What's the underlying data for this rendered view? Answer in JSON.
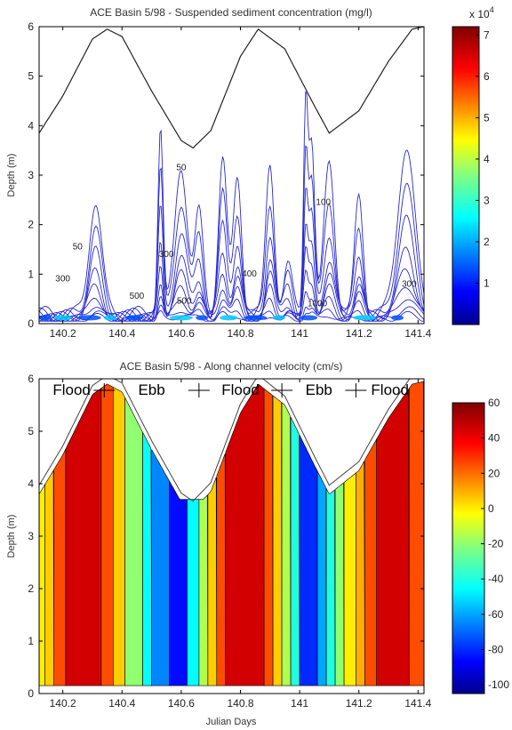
{
  "chart_data": [
    {
      "type": "contour",
      "title": "ACE Basin 5/98 - Suspended sediment concentration (mg/l)",
      "ylabel": "Depth (m)",
      "xlabel": "",
      "xlim": [
        140.12,
        141.42
      ],
      "ylim": [
        0,
        6
      ],
      "xticks": [
        "140.2",
        "140.4",
        "140.6",
        "140.8",
        "141",
        "141.2",
        "141.4"
      ],
      "yticks": [
        "0",
        "1",
        "2",
        "3",
        "4",
        "5",
        "6"
      ],
      "colorbar": {
        "range": [
          0,
          72000
        ],
        "ticks": [
          "1",
          "2",
          "3",
          "4",
          "5",
          "6",
          "7"
        ],
        "exponent_base": "x 10",
        "exponent": "4"
      },
      "contour_labels": [
        {
          "text": "50",
          "x": 140.25,
          "y": 1.5
        },
        {
          "text": "50",
          "x": 140.6,
          "y": 3.1
        },
        {
          "text": "300",
          "x": 140.2,
          "y": 0.85
        },
        {
          "text": "300",
          "x": 140.55,
          "y": 1.35
        },
        {
          "text": "500",
          "x": 140.45,
          "y": 0.5
        },
        {
          "text": "500",
          "x": 140.61,
          "y": 0.4
        },
        {
          "text": "400",
          "x": 140.83,
          "y": 0.95
        },
        {
          "text": "100",
          "x": 141.08,
          "y": 2.4
        },
        {
          "text": "1000",
          "x": 141.06,
          "y": 0.35
        },
        {
          "text": "300",
          "x": 141.37,
          "y": 0.75
        }
      ],
      "surface": {
        "x": [
          140.12,
          140.2,
          140.3,
          140.35,
          140.4,
          140.5,
          140.6,
          140.64,
          140.7,
          140.8,
          140.86,
          140.95,
          141.05,
          141.1,
          141.2,
          141.3,
          141.38,
          141.42
        ],
        "depth": [
          3.85,
          4.6,
          5.75,
          5.95,
          5.8,
          4.7,
          3.7,
          3.55,
          3.9,
          5.4,
          5.95,
          5.55,
          4.4,
          3.85,
          4.3,
          5.3,
          5.95,
          6.0
        ]
      }
    },
    {
      "type": "contour",
      "title": "ACE Basin 5/98 - Along channel velocity (cm/s)",
      "ylabel": "Depth (m)",
      "xlabel": "Julian Days",
      "xlim": [
        140.12,
        141.42
      ],
      "ylim": [
        0,
        6
      ],
      "xticks": [
        "140.2",
        "140.4",
        "140.6",
        "140.8",
        "141",
        "141.2",
        "141.4"
      ],
      "yticks": [
        "0",
        "1",
        "2",
        "3",
        "4",
        "5",
        "6"
      ],
      "colorbar": {
        "range": [
          -105,
          60
        ],
        "ticks": [
          "60",
          "40",
          "20",
          "0",
          "-20",
          "-40",
          "-60",
          "-80",
          "-100"
        ]
      },
      "tidal_phases": [
        "Flood",
        "Ebb",
        "Flood",
        "Ebb",
        "Flood"
      ],
      "phase_boundaries": [
        140.34,
        140.66,
        140.94,
        141.19
      ],
      "bands": [
        {
          "x0": 140.12,
          "x1": 140.14,
          "value": 0
        },
        {
          "x0": 140.14,
          "x1": 140.17,
          "value": 5
        },
        {
          "x0": 140.17,
          "x1": 140.21,
          "value": 25
        },
        {
          "x0": 140.21,
          "x1": 140.33,
          "value": 45
        },
        {
          "x0": 140.33,
          "x1": 140.37,
          "value": 25
        },
        {
          "x0": 140.37,
          "x1": 140.41,
          "value": 5
        },
        {
          "x0": 140.41,
          "x1": 140.47,
          "value": -20
        },
        {
          "x0": 140.47,
          "x1": 140.5,
          "value": -45
        },
        {
          "x0": 140.5,
          "x1": 140.56,
          "value": -65
        },
        {
          "x0": 140.56,
          "x1": 140.62,
          "value": -85
        },
        {
          "x0": 140.62,
          "x1": 140.66,
          "value": -45
        },
        {
          "x0": 140.66,
          "x1": 140.69,
          "value": -15
        },
        {
          "x0": 140.69,
          "x1": 140.72,
          "value": 5
        },
        {
          "x0": 140.72,
          "x1": 140.75,
          "value": 25
        },
        {
          "x0": 140.75,
          "x1": 140.88,
          "value": 45
        },
        {
          "x0": 140.88,
          "x1": 140.91,
          "value": 25
        },
        {
          "x0": 140.91,
          "x1": 140.94,
          "value": 5
        },
        {
          "x0": 140.94,
          "x1": 140.97,
          "value": -15
        },
        {
          "x0": 140.97,
          "x1": 141.0,
          "value": -40
        },
        {
          "x0": 141.0,
          "x1": 141.06,
          "value": -80
        },
        {
          "x0": 141.06,
          "x1": 141.09,
          "value": -60
        },
        {
          "x0": 141.09,
          "x1": 141.12,
          "value": -40
        },
        {
          "x0": 141.12,
          "x1": 141.15,
          "value": -20
        },
        {
          "x0": 141.15,
          "x1": 141.19,
          "value": 0
        },
        {
          "x0": 141.19,
          "x1": 141.22,
          "value": 10
        },
        {
          "x0": 141.22,
          "x1": 141.26,
          "value": 25
        },
        {
          "x0": 141.26,
          "x1": 141.37,
          "value": 45
        },
        {
          "x0": 141.37,
          "x1": 141.42,
          "value": 25
        }
      ],
      "surface": {
        "x": [
          140.12,
          140.2,
          140.3,
          140.35,
          140.4,
          140.5,
          140.6,
          140.64,
          140.7,
          140.8,
          140.86,
          140.95,
          141.05,
          141.1,
          141.2,
          141.3,
          141.38,
          141.42
        ],
        "depth": [
          3.85,
          4.6,
          5.75,
          5.95,
          5.8,
          4.7,
          3.7,
          3.55,
          3.9,
          5.4,
          5.95,
          5.55,
          4.4,
          3.85,
          4.3,
          5.3,
          5.95,
          6.0
        ]
      }
    }
  ]
}
